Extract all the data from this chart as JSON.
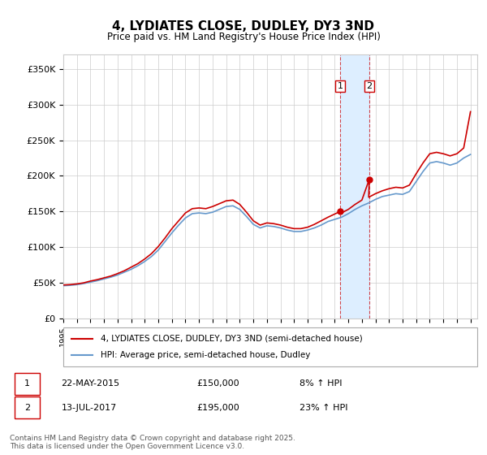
{
  "title": "4, LYDIATES CLOSE, DUDLEY, DY3 3ND",
  "subtitle": "Price paid vs. HM Land Registry's House Price Index (HPI)",
  "ylabel_ticks": [
    "£0",
    "£50K",
    "£100K",
    "£150K",
    "£200K",
    "£250K",
    "£300K",
    "£350K"
  ],
  "ytick_values": [
    0,
    50000,
    100000,
    150000,
    200000,
    250000,
    300000,
    350000
  ],
  "ylim": [
    0,
    370000
  ],
  "xlim_start": 1995.0,
  "xlim_end": 2025.5,
  "sale1_date": 2015.39,
  "sale1_price": 150000,
  "sale1_label": "1",
  "sale2_date": 2017.54,
  "sale2_price": 195000,
  "sale2_label": "2",
  "shade_x0": 2015.39,
  "shade_x1": 2017.54,
  "red_line_color": "#cc0000",
  "blue_line_color": "#6699cc",
  "shade_color": "#ddeeff",
  "marker_color": "#cc0000",
  "background_color": "#ffffff",
  "grid_color": "#cccccc",
  "legend_label_red": "4, LYDIATES CLOSE, DUDLEY, DY3 3ND (semi-detached house)",
  "legend_label_blue": "HPI: Average price, semi-detached house, Dudley",
  "footer_text": "Contains HM Land Registry data © Crown copyright and database right 2025.\nThis data is licensed under the Open Government Licence v3.0.",
  "table_row1": [
    "1",
    "22-MAY-2015",
    "£150,000",
    "8% ↑ HPI"
  ],
  "table_row2": [
    "2",
    "13-JUL-2017",
    "£195,000",
    "23% ↑ HPI"
  ],
  "hpi_years": [
    1995.0,
    1995.5,
    1996.0,
    1996.5,
    1997.0,
    1997.5,
    1998.0,
    1998.5,
    1999.0,
    1999.5,
    2000.0,
    2000.5,
    2001.0,
    2001.5,
    2002.0,
    2002.5,
    2003.0,
    2003.5,
    2004.0,
    2004.5,
    2005.0,
    2005.5,
    2006.0,
    2006.5,
    2007.0,
    2007.5,
    2008.0,
    2008.5,
    2009.0,
    2009.5,
    2010.0,
    2010.5,
    2011.0,
    2011.5,
    2012.0,
    2012.5,
    2013.0,
    2013.5,
    2014.0,
    2014.5,
    2015.0,
    2015.5,
    2016.0,
    2016.5,
    2017.0,
    2017.5,
    2018.0,
    2018.5,
    2019.0,
    2019.5,
    2020.0,
    2020.5,
    2021.0,
    2021.5,
    2022.0,
    2022.5,
    2023.0,
    2023.5,
    2024.0,
    2024.5,
    2025.0
  ],
  "hpi_values": [
    46000,
    46500,
    47500,
    49000,
    51000,
    53000,
    55500,
    58000,
    61000,
    65000,
    69000,
    74000,
    80000,
    87000,
    96000,
    108000,
    120000,
    131000,
    141000,
    147000,
    148000,
    147000,
    149000,
    153000,
    157000,
    158000,
    153000,
    143000,
    132000,
    127000,
    130000,
    129000,
    127000,
    124000,
    122000,
    122000,
    124000,
    127000,
    131000,
    136000,
    139000,
    142000,
    147000,
    153000,
    158000,
    162000,
    167000,
    171000,
    173000,
    175000,
    174000,
    178000,
    192000,
    206000,
    218000,
    220000,
    218000,
    215000,
    218000,
    225000,
    230000
  ],
  "red_years": [
    1995.0,
    1995.5,
    1996.0,
    1996.5,
    1997.0,
    1997.5,
    1998.0,
    1998.5,
    1999.0,
    1999.5,
    2000.0,
    2000.5,
    2001.0,
    2001.5,
    2002.0,
    2002.5,
    2003.0,
    2003.5,
    2004.0,
    2004.5,
    2005.0,
    2005.5,
    2006.0,
    2006.5,
    2007.0,
    2007.5,
    2008.0,
    2008.5,
    2009.0,
    2009.5,
    2010.0,
    2010.5,
    2011.0,
    2011.5,
    2012.0,
    2012.5,
    2013.0,
    2013.5,
    2014.0,
    2014.5,
    2015.39,
    2015.5,
    2016.0,
    2016.5,
    2017.0,
    2017.54,
    2017.5,
    2018.0,
    2018.5,
    2019.0,
    2019.5,
    2020.0,
    2020.5,
    2021.0,
    2021.5,
    2022.0,
    2022.5,
    2023.0,
    2023.5,
    2024.0,
    2024.5,
    2025.0
  ],
  "red_values": [
    47000,
    47500,
    48500,
    50000,
    52500,
    54500,
    57000,
    59500,
    63000,
    67000,
    72000,
    77000,
    83500,
    91000,
    101000,
    113000,
    126000,
    137000,
    148000,
    154000,
    155000,
    154000,
    157000,
    161000,
    165000,
    166000,
    160000,
    149000,
    137000,
    131000,
    134000,
    133000,
    131000,
    128000,
    126000,
    126000,
    128000,
    132000,
    137000,
    142000,
    150000,
    148000,
    153000,
    160000,
    166000,
    195000,
    170000,
    175000,
    179000,
    182000,
    184000,
    183000,
    187000,
    203000,
    218000,
    231000,
    233000,
    231000,
    228000,
    231000,
    239000,
    290000
  ]
}
